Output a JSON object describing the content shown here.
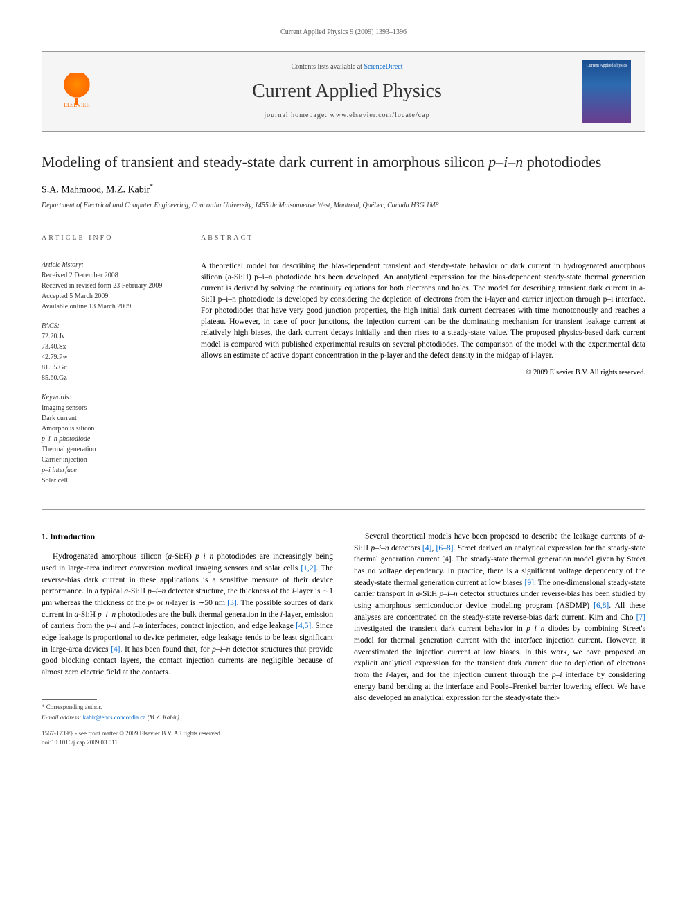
{
  "header": {
    "journal_line": "Current Applied Physics 9 (2009) 1393–1396",
    "contents_prefix": "Contents lists available at ",
    "contents_link": "ScienceDirect",
    "journal_name": "Current Applied Physics",
    "homepage_prefix": "journal homepage: ",
    "homepage_url": "www.elsevier.com/locate/cap",
    "publisher_name": "ELSEVIER",
    "cover_text": "Current Applied Physics"
  },
  "article": {
    "title_pre": "Modeling of transient and steady-state dark current in amorphous silicon ",
    "title_ital": "p–i–n",
    "title_post": " photodiodes",
    "authors": "S.A. Mahmood, M.Z. Kabir",
    "author_marker": "*",
    "affiliation": "Department of Electrical and Computer Engineering, Concordia University, 1455 de Maisonneuve West, Montreal, Québec, Canada H3G 1M8"
  },
  "info": {
    "heading": "article info",
    "history_heading": "Article history:",
    "history": [
      "Received 2 December 2008",
      "Received in revised form 23 February 2009",
      "Accepted 5 March 2009",
      "Available online 13 March 2009"
    ],
    "pacs_heading": "PACS:",
    "pacs": [
      "72.20.Jv",
      "73.40.Sx",
      "42.79.Pw",
      "81.05.Gc",
      "85.60.Gz"
    ],
    "kw_heading": "Keywords:",
    "keywords": [
      "Imaging sensors",
      "Dark current",
      "Amorphous silicon",
      "p–i–n photodiode",
      "Thermal generation",
      "Carrier injection",
      "p–i interface",
      "Solar cell"
    ]
  },
  "abstract": {
    "heading": "abstract",
    "text": "A theoretical model for describing the bias-dependent transient and steady-state behavior of dark current in hydrogenated amorphous silicon (a-Si:H) p–i–n photodiode has been developed. An analytical expression for the bias-dependent steady-state thermal generation current is derived by solving the continuity equations for both electrons and holes. The model for describing transient dark current in a-Si:H p–i–n photodiode is developed by considering the depletion of electrons from the i-layer and carrier injection through p–i interface. For photodiodes that have very good junction properties, the high initial dark current decreases with time monotonously and reaches a plateau. However, in case of poor junctions, the injection current can be the dominating mechanism for transient leakage current at relatively high biases, the dark current decays initially and then rises to a steady-state value. The proposed physics-based dark current model is compared with published experimental results on several photodiodes. The comparison of the model with the experimental data allows an estimate of active dopant concentration in the p-layer and the defect density in the midgap of i-layer.",
    "copyright": "© 2009 Elsevier B.V. All rights reserved."
  },
  "body": {
    "section_num": "1.",
    "section_title": "Introduction",
    "col1_para": "Hydrogenated amorphous silicon (a-Si:H) p–i–n photodiodes are increasingly being used in large-area indirect conversion medical imaging sensors and solar cells [1,2]. The reverse-bias dark current in these applications is a sensitive measure of their device performance. In a typical a-Si:H p–i–n detector structure, the thickness of the i-layer is ∼1 μm whereas the thickness of the p- or n-layer is ∼50 nm [3]. The possible sources of dark current in a-Si:H p–i–n photodiodes are the bulk thermal generation in the i-layer, emission of carriers from the p–i and i–n interfaces, contact injection, and edge leakage [4,5]. Since edge leakage is proportional to device perimeter, edge leakage tends to be least significant in large-area devices [4]. It has been found that, for p–i–n detector structures that provide good blocking contact layers, the contact injection currents are negligible because of almost zero electric field at the contacts.",
    "col2_para": "Several theoretical models have been proposed to describe the leakage currents of a-Si:H p–i–n detectors [4], [6–8]. Street derived an analytical expression for the steady-state thermal generation current [4]. The steady-state thermal generation model given by Street has no voltage dependency. In practice, there is a significant voltage dependency of the steady-state thermal generation current at low biases [9]. The one-dimensional steady-state carrier transport in a-Si:H p–i–n detector structures under reverse-bias has been studied by using amorphous semiconductor device modeling program (ASDMP) [6,8]. All these analyses are concentrated on the steady-state reverse-bias dark current. Kim and Cho [7] investigated the transient dark current behavior in p–i–n diodes by combining Street's model for thermal generation current with the interface injection current. However, it overestimated the injection current at low biases. In this work, we have proposed an explicit analytical expression for the transient dark current due to depletion of electrons from the i-layer, and for the injection current through the p–i interface by considering energy band bending at the interface and Poole–Frenkel barrier lowering effect. We have also developed an analytical expression for the steady-state ther-",
    "refs_c1": [
      "[1,2]",
      "[3]",
      "[4,5]",
      "[4]"
    ],
    "refs_c2": [
      "[4]",
      "[6–8]",
      "[4]",
      "[9]",
      "[6,8]",
      "[7]"
    ]
  },
  "footer": {
    "corresp_marker": "*",
    "corresp_label": " Corresponding author.",
    "email_label": "E-mail address: ",
    "email": "kabir@encs.concordia.ca",
    "email_name": " (M.Z. Kabir).",
    "front_matter": "1567-1739/$ - see front matter © 2009 Elsevier B.V. All rights reserved.",
    "doi": "doi:10.1016/j.cap.2009.03.011"
  },
  "colors": {
    "link": "#0066cc",
    "publisher": "#ff6a00",
    "text": "#000000",
    "border": "#999999",
    "header_bg": "#f5f5f5"
  }
}
